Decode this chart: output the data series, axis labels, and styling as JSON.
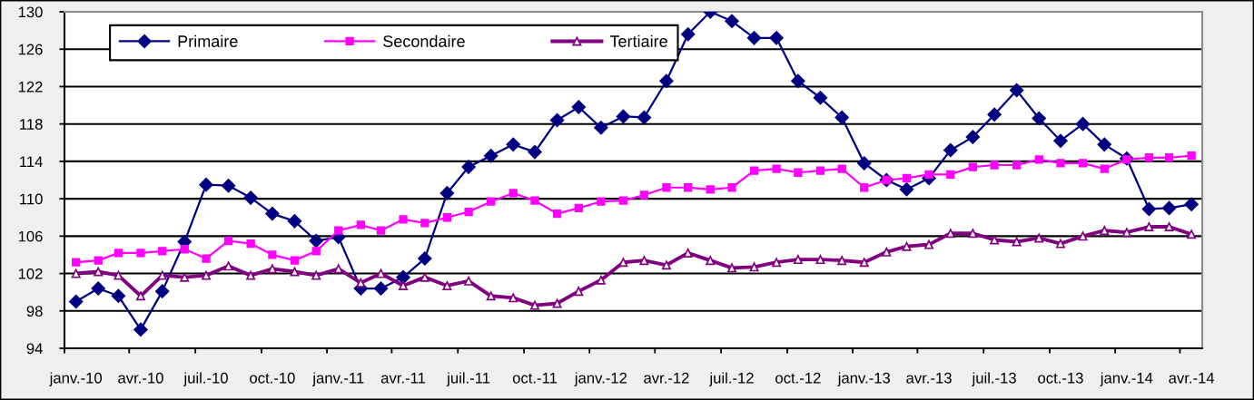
{
  "chart_data": {
    "type": "line",
    "x": [
      "2010-01",
      "2010-02",
      "2010-03",
      "2010-04",
      "2010-05",
      "2010-06",
      "2010-07",
      "2010-08",
      "2010-09",
      "2010-10",
      "2010-11",
      "2010-12",
      "2011-01",
      "2011-02",
      "2011-03",
      "2011-04",
      "2011-05",
      "2011-06",
      "2011-07",
      "2011-08",
      "2011-09",
      "2011-10",
      "2011-11",
      "2011-12",
      "2012-01",
      "2012-02",
      "2012-03",
      "2012-04",
      "2012-05",
      "2012-06",
      "2012-07",
      "2012-08",
      "2012-09",
      "2012-10",
      "2012-11",
      "2012-12",
      "2013-01",
      "2013-02",
      "2013-03",
      "2013-04",
      "2013-05",
      "2013-06",
      "2013-07",
      "2013-08",
      "2013-09",
      "2013-10",
      "2013-11",
      "2013-12",
      "2014-01",
      "2014-02",
      "2014-03",
      "2014-04"
    ],
    "series": [
      {
        "name": "Primaire",
        "color": "#000080",
        "marker": "diamond",
        "line_style": "solid",
        "values": [
          99.0,
          100.4,
          99.6,
          96.0,
          100.1,
          105.4,
          111.5,
          111.4,
          110.1,
          108.4,
          107.6,
          105.5,
          105.9,
          100.4,
          100.4,
          101.6,
          103.6,
          110.6,
          113.4,
          114.6,
          115.8,
          115.0,
          118.4,
          119.8,
          117.6,
          118.8,
          118.7,
          122.6,
          127.6,
          130.0,
          129.0,
          127.2,
          127.2,
          122.6,
          120.8,
          118.7,
          113.8,
          112.0,
          111.0,
          112.2,
          115.2,
          116.6,
          119.0,
          121.6,
          118.6,
          116.2,
          118.0,
          115.8,
          114.3,
          108.9,
          109.0,
          109.4
        ]
      },
      {
        "name": "Secondaire",
        "color": "#ff00ff",
        "marker": "square",
        "line_style": "solid",
        "values": [
          103.2,
          103.4,
          104.2,
          104.2,
          104.4,
          104.6,
          103.6,
          105.5,
          105.2,
          104.0,
          103.4,
          104.4,
          106.6,
          107.2,
          106.6,
          107.8,
          107.4,
          108.0,
          108.6,
          109.7,
          110.6,
          109.8,
          108.4,
          109.0,
          109.7,
          109.8,
          110.4,
          111.2,
          111.2,
          111.0,
          111.2,
          113.0,
          113.2,
          112.8,
          113.0,
          113.2,
          111.2,
          112.0,
          112.2,
          112.6,
          112.6,
          113.4,
          113.6,
          113.6,
          114.2,
          113.8,
          113.8,
          113.2,
          114.2,
          114.4,
          114.4,
          114.6
        ]
      },
      {
        "name": "Tertiaire",
        "color": "#800080",
        "marker": "triangle",
        "line_style": "solid",
        "values": [
          102.0,
          102.2,
          101.8,
          99.6,
          101.8,
          101.6,
          101.8,
          102.8,
          101.8,
          102.5,
          102.2,
          101.8,
          102.5,
          101.0,
          102.0,
          100.7,
          101.6,
          100.7,
          101.2,
          99.6,
          99.4,
          98.6,
          98.8,
          100.1,
          101.3,
          103.2,
          103.4,
          102.9,
          104.2,
          103.4,
          102.6,
          102.7,
          103.2,
          103.5,
          103.5,
          103.4,
          103.2,
          104.3,
          104.9,
          105.1,
          106.3,
          106.3,
          105.6,
          105.4,
          105.8,
          105.2,
          106.0,
          106.6,
          106.4,
          107.0,
          107.0,
          106.2
        ]
      }
    ],
    "xlim": [
      "2009-12-16",
      "2014-04-16"
    ],
    "xticks": [
      {
        "value": "2010-01",
        "label": "janv.-10"
      },
      {
        "value": "2010-04",
        "label": "avr.-10"
      },
      {
        "value": "2010-07",
        "label": "juil.-10"
      },
      {
        "value": "2010-10",
        "label": "oct.-10"
      },
      {
        "value": "2011-01",
        "label": "janv.-11"
      },
      {
        "value": "2011-04",
        "label": "avr.-11"
      },
      {
        "value": "2011-07",
        "label": "juil.-11"
      },
      {
        "value": "2011-10",
        "label": "oct.-11"
      },
      {
        "value": "2012-01",
        "label": "janv.-12"
      },
      {
        "value": "2012-04",
        "label": "avr.-12"
      },
      {
        "value": "2012-07",
        "label": "juil.-12"
      },
      {
        "value": "2012-10",
        "label": "oct.-12"
      },
      {
        "value": "2013-01",
        "label": "janv.-13"
      },
      {
        "value": "2013-04",
        "label": "avr.-13"
      },
      {
        "value": "2013-07",
        "label": "juil.-13"
      },
      {
        "value": "2013-10",
        "label": "oct.-13"
      },
      {
        "value": "2014-01",
        "label": "janv.-14"
      },
      {
        "value": "2014-04",
        "label": "avr.-14"
      },
      {
        "value": "2009-12-16",
        "label": null
      },
      {
        "value": "2010-03-16",
        "label": null
      },
      {
        "value": "2010-06-16",
        "label": null
      },
      {
        "value": "2010-09-16",
        "label": null
      },
      {
        "value": "2010-12-16",
        "label": null
      },
      {
        "value": "2011-03-16",
        "label": null
      },
      {
        "value": "2011-06-16",
        "label": null
      },
      {
        "value": "2011-09-16",
        "label": null
      },
      {
        "value": "2011-12-16",
        "label": null
      },
      {
        "value": "2012-03-16",
        "label": null
      },
      {
        "value": "2012-06-16",
        "label": null
      },
      {
        "value": "2012-09-16",
        "label": null
      },
      {
        "value": "2012-12-16",
        "label": null
      },
      {
        "value": "2013-03-16",
        "label": null
      },
      {
        "value": "2013-06-16",
        "label": null
      },
      {
        "value": "2013-09-16",
        "label": null
      },
      {
        "value": "2013-12-16",
        "label": null
      },
      {
        "value": "2014-03-16",
        "label": null
      }
    ],
    "ylim": [
      94,
      130
    ],
    "yticks": [
      94,
      98,
      102,
      106,
      110,
      114,
      118,
      122,
      126,
      130
    ],
    "grid": "y",
    "legend": "top left"
  }
}
